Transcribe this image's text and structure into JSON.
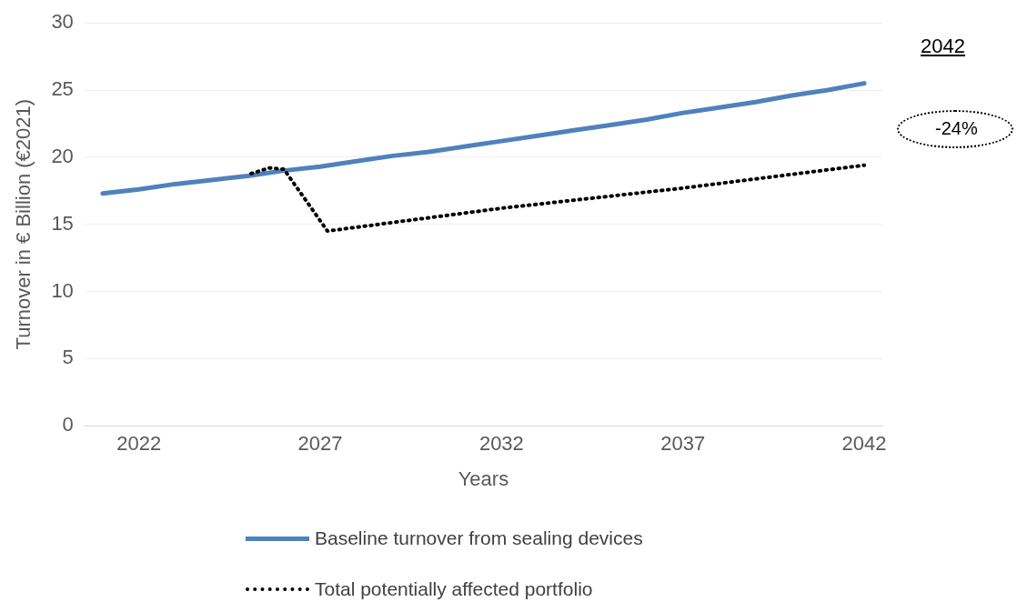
{
  "chart_data": {
    "type": "line",
    "xlabel": "Years",
    "ylabel": "Turnover in € Billion (€2021)",
    "x": [
      2021,
      2022,
      2023,
      2024,
      2025,
      2026,
      2027,
      2028,
      2029,
      2030,
      2031,
      2032,
      2033,
      2034,
      2035,
      2036,
      2037,
      2038,
      2039,
      2040,
      2041,
      2042
    ],
    "series": [
      {
        "name": "Baseline turnover from sealing devices",
        "color": "#4f81bd",
        "line_style": "solid",
        "values": [
          17.3,
          17.6,
          18.0,
          18.3,
          18.6,
          19.0,
          19.3,
          19.7,
          20.1,
          20.4,
          20.8,
          21.2,
          21.6,
          22.0,
          22.4,
          22.8,
          23.3,
          23.7,
          24.1,
          24.6,
          25.0,
          25.5
        ]
      },
      {
        "name": "Total potentially affected portfolio",
        "color": "#000000",
        "line_style": "dotted",
        "x": [
          2025,
          2025.6,
          2026,
          2027.2,
          2032,
          2037,
          2042
        ],
        "values": [
          18.7,
          19.2,
          19.1,
          14.5,
          16.2,
          17.7,
          19.4
        ]
      }
    ],
    "xlim": [
      2020.5,
      2042.5
    ],
    "xticks": [
      2022,
      2027,
      2032,
      2037,
      2042
    ],
    "ylim": [
      0,
      30
    ],
    "yticks": [
      0,
      5,
      10,
      15,
      20,
      25,
      30
    ],
    "grid": "y",
    "legend": "bottom",
    "marker": "none",
    "annotations": [
      "2042",
      "-24%"
    ]
  }
}
